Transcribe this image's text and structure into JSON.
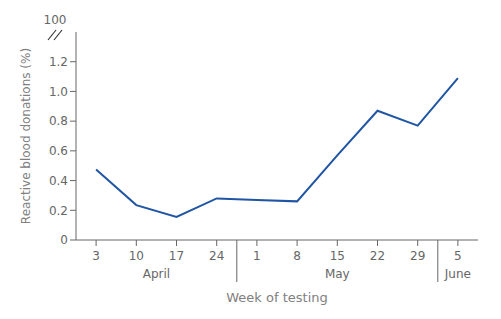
{
  "chart_data": {
    "type": "line",
    "xlabel": "Week of testing",
    "ylabel": "Reactive blood donations (%)",
    "categories": [
      "3",
      "10",
      "17",
      "24",
      "1",
      "8",
      "15",
      "22",
      "29",
      "5"
    ],
    "x_groups": [
      "April",
      "April",
      "April",
      "April",
      "May",
      "May",
      "May",
      "May",
      "May",
      "June"
    ],
    "values": [
      0.475,
      0.235,
      0.155,
      0.28,
      0.27,
      0.26,
      0.57,
      0.87,
      0.77,
      1.09
    ],
    "color": "#2055A4",
    "ylim": [
      0,
      1.4
    ],
    "yticks": [
      0,
      0.2,
      0.4,
      0.6,
      0.8,
      {
        "value": 1.0,
        "label": "1.0"
      },
      1.2
    ],
    "grid": false,
    "annotations": [
      {
        "text": "100"
      }
    ]
  }
}
